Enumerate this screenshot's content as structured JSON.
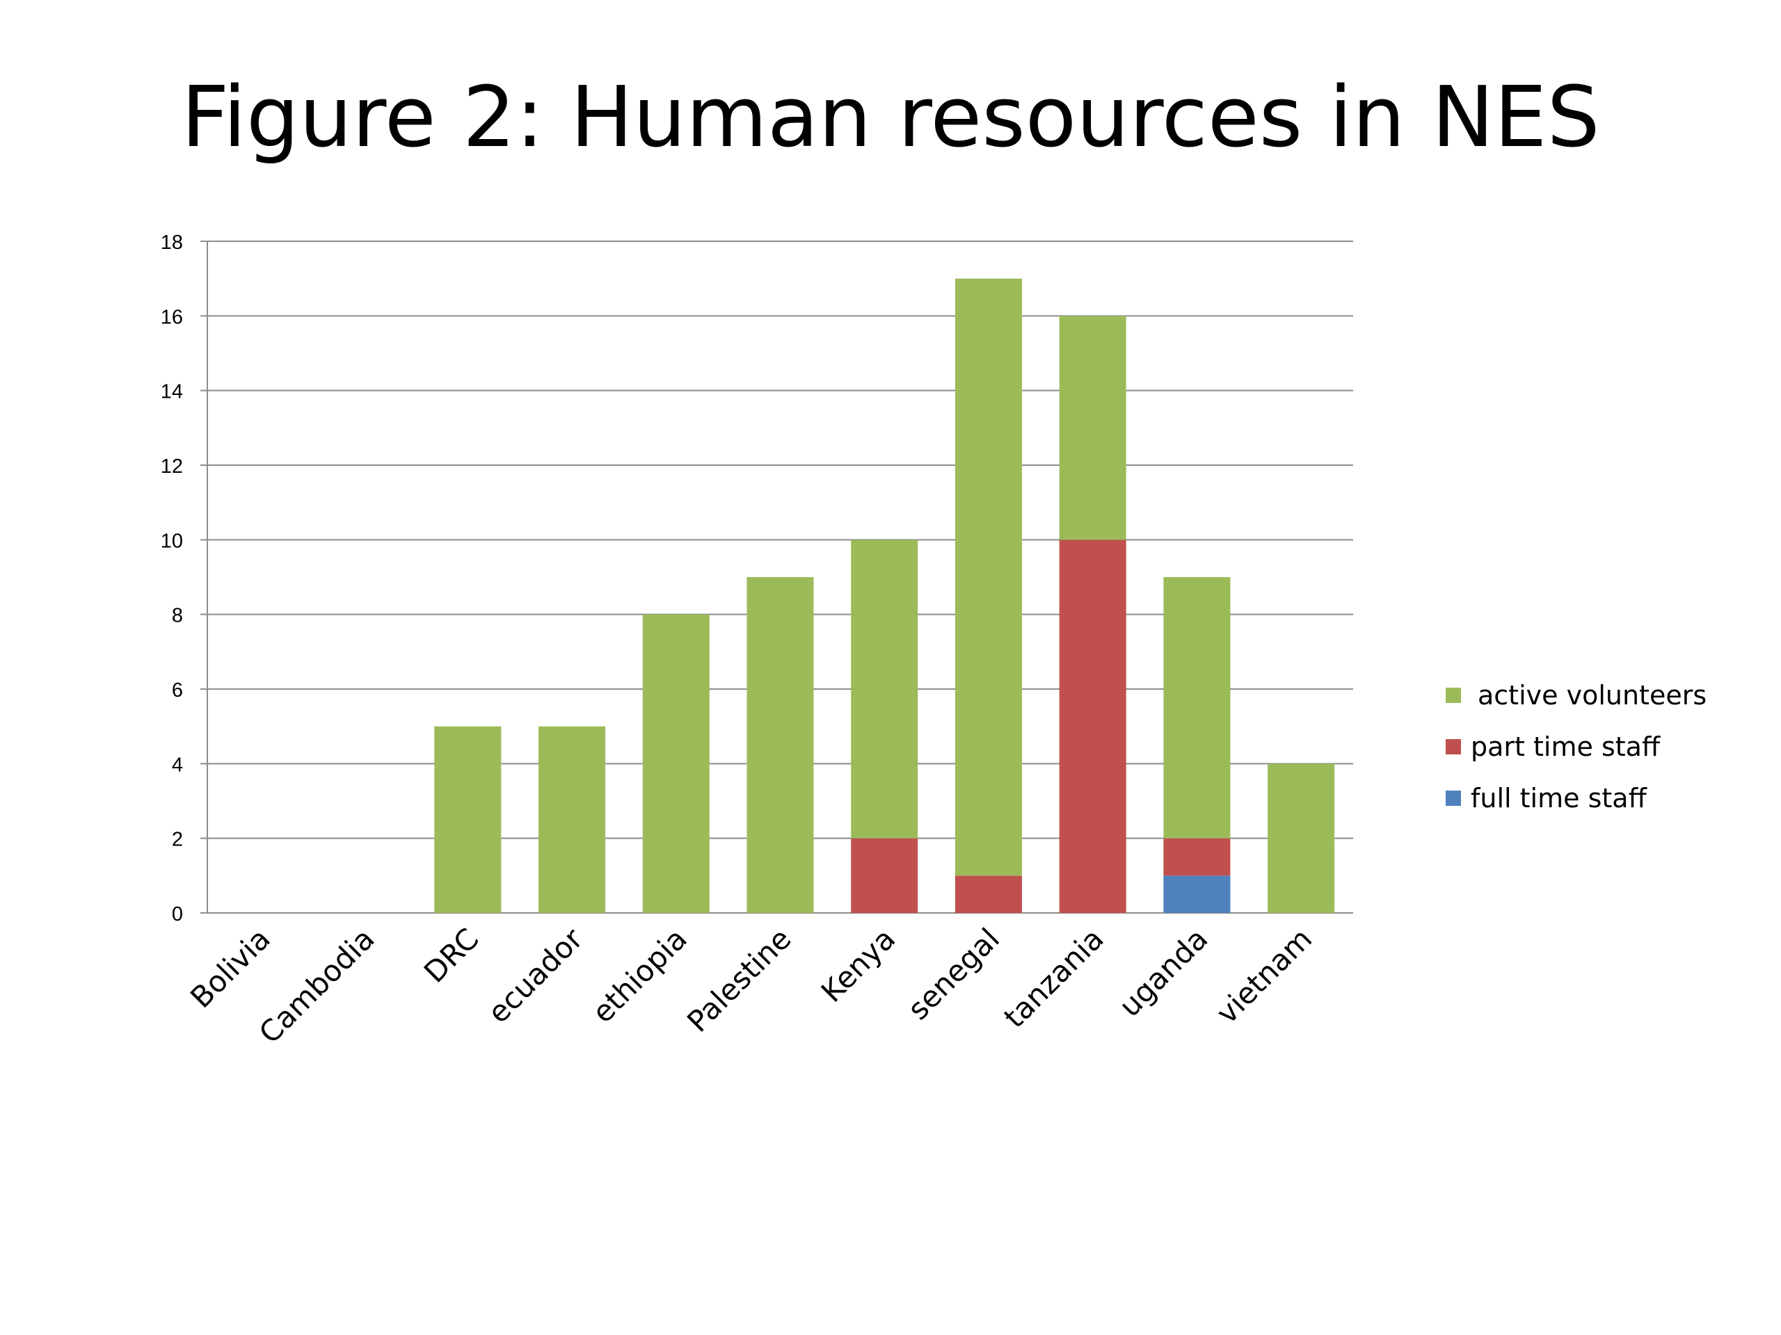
{
  "title": "Figure 2: Human resources in NES",
  "chart_data": {
    "type": "bar",
    "stacked": true,
    "categories": [
      "Bolivia",
      "Cambodia",
      "DRC",
      "ecuador",
      "ethiopia",
      "Palestine",
      "Kenya",
      "senegal",
      "tanzania",
      "uganda",
      "vietnam"
    ],
    "series": [
      {
        "name": "full time staff",
        "color": "#4F81BD",
        "values": [
          0,
          0,
          0,
          0,
          0,
          0,
          0,
          0,
          0,
          1,
          0
        ]
      },
      {
        "name": "part time staff",
        "color": "#C0504D",
        "values": [
          0,
          0,
          0,
          0,
          0,
          0,
          2,
          1,
          10,
          1,
          0
        ]
      },
      {
        "name": "active volunteers",
        "color": "#9BBB59",
        "values": [
          0,
          0,
          5,
          5,
          8,
          9,
          8,
          16,
          6,
          7,
          4
        ]
      }
    ],
    "legend_order": [
      "active volunteers",
      "part time staff",
      "full time staff"
    ],
    "yticks": [
      "0",
      "2",
      "4",
      "6",
      "8",
      "10",
      "12",
      "14",
      "16",
      "18"
    ],
    "ylim": [
      0,
      18
    ],
    "grid": true,
    "legend_position": "right"
  }
}
